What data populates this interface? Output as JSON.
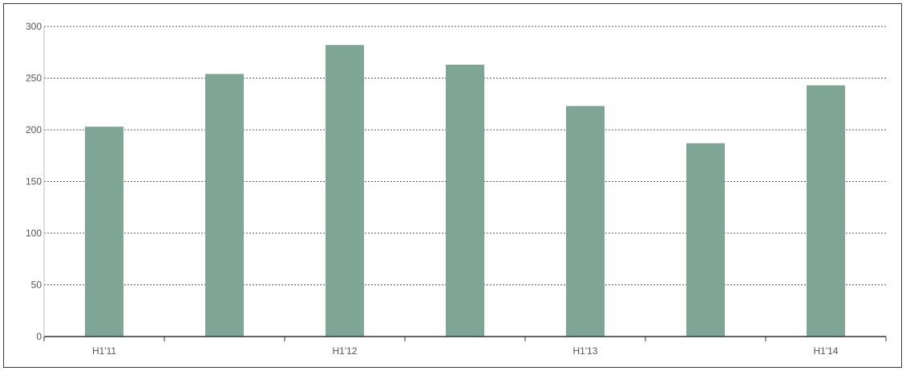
{
  "chart_data": {
    "type": "bar",
    "title": "",
    "xlabel": "",
    "ylabel": "",
    "categories": [
      "H1'11",
      "",
      "H1'12",
      "",
      "H1'13",
      "",
      "H1'14"
    ],
    "values": [
      203,
      254,
      282,
      263,
      223,
      187,
      243
    ],
    "ylim": [
      0,
      300
    ],
    "yticks": [
      "0",
      "50",
      "100",
      "150",
      "200",
      "250",
      "300"
    ],
    "grid": true,
    "legend": "none",
    "colors": {
      "bar": "#7fa597",
      "grid": "#555555",
      "axis": "#333333"
    }
  }
}
